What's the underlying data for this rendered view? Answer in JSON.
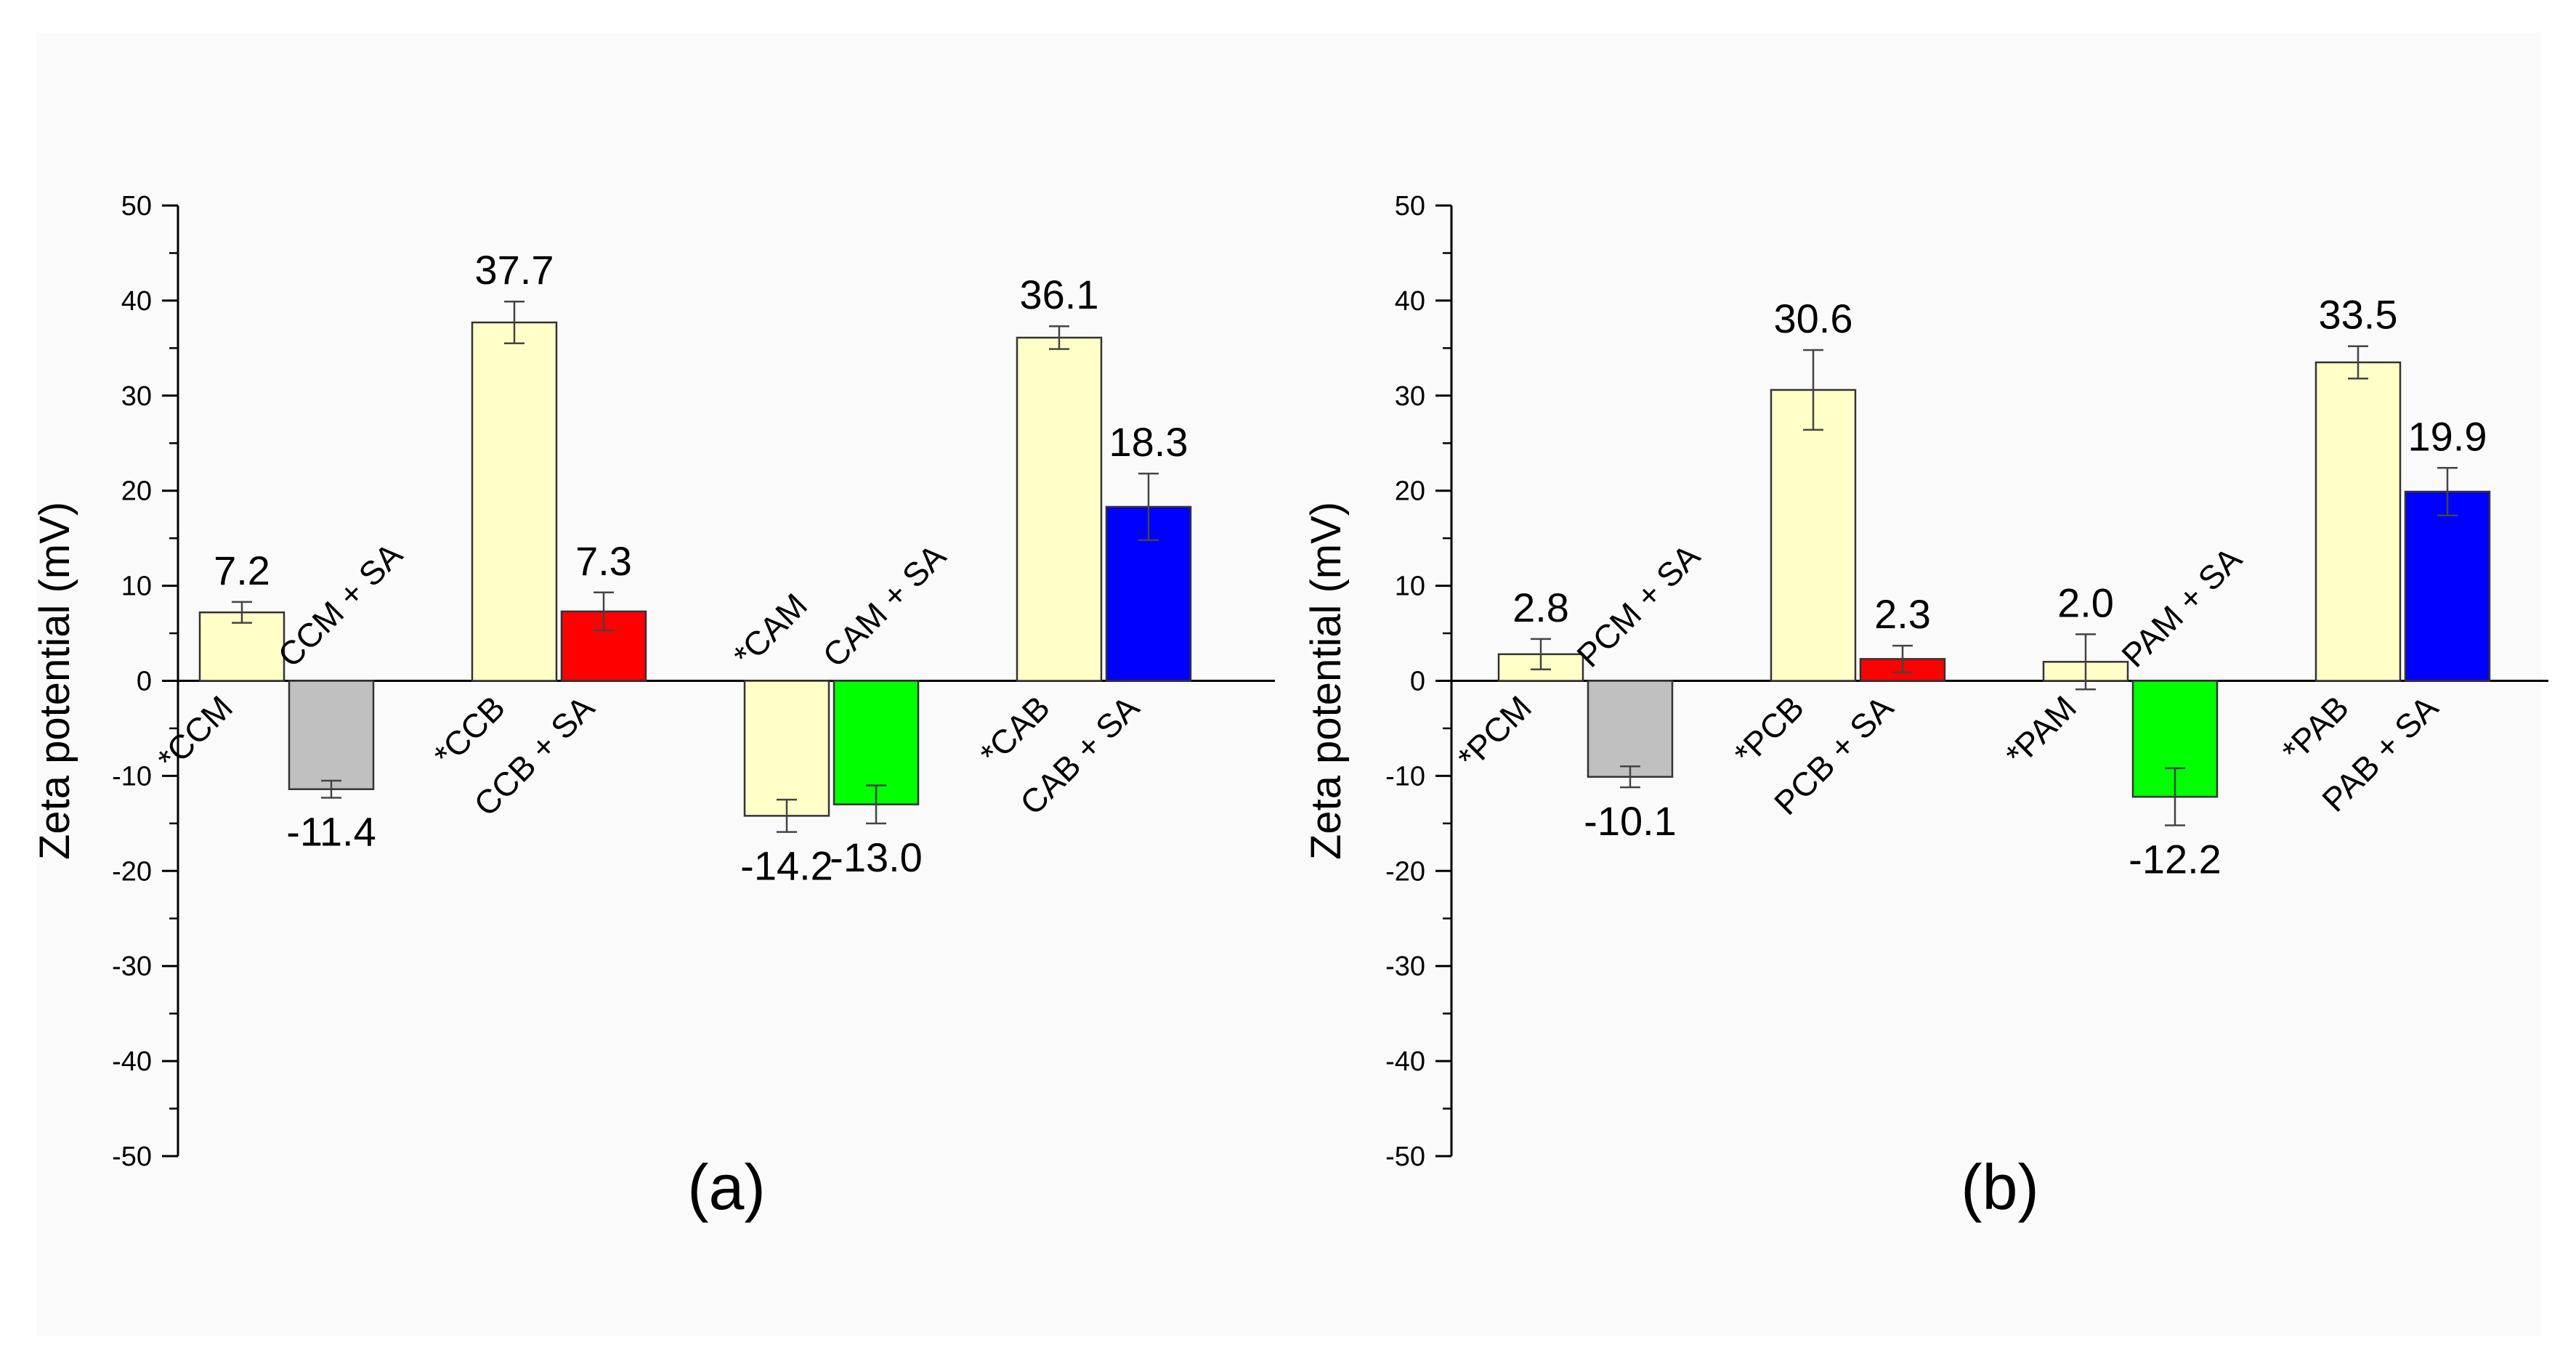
{
  "chart_data": [
    {
      "type": "bar",
      "panel_label": "(a)",
      "ylabel": "Zeta potential (mV)",
      "ylim": [
        -50,
        50
      ],
      "yticks": [
        50,
        40,
        30,
        20,
        10,
        0,
        -10,
        -20,
        -30,
        -40,
        -50
      ],
      "bars": [
        {
          "label": "*CCM",
          "value": 7.2,
          "value_label": "7.2",
          "error": 1.1,
          "color": "#ffffc8"
        },
        {
          "label": "CCM + SA",
          "value": -11.4,
          "value_label": "-11.4",
          "error": 0.9,
          "color": "#c0c0c0"
        },
        {
          "label": "*CCB",
          "value": 37.7,
          "value_label": "37.7",
          "error": 2.2,
          "color": "#ffffc8"
        },
        {
          "label": "CCB + SA",
          "value": 7.3,
          "value_label": "7.3",
          "error": 2.0,
          "color": "#ff0000"
        },
        {
          "label": "*CAM",
          "value": -14.2,
          "value_label": "-14.2",
          "error": 1.7,
          "color": "#ffffc8"
        },
        {
          "label": "CAM + SA",
          "value": -13.0,
          "value_label": "-13.0",
          "error": 2.0,
          "color": "#00ff00"
        },
        {
          "label": "*CAB",
          "value": 36.1,
          "value_label": "36.1",
          "error": 1.2,
          "color": "#ffffc8"
        },
        {
          "label": "CAB + SA",
          "value": 18.3,
          "value_label": "18.3",
          "error": 3.5,
          "color": "#0000ff"
        }
      ]
    },
    {
      "type": "bar",
      "panel_label": "(b)",
      "ylabel": "Zeta potential (mV)",
      "ylim": [
        -50,
        50
      ],
      "yticks": [
        50,
        40,
        30,
        20,
        10,
        0,
        -10,
        -20,
        -30,
        -40,
        -50
      ],
      "bars": [
        {
          "label": "*PCM",
          "value": 2.8,
          "value_label": "2.8",
          "error": 1.6,
          "color": "#ffffc8"
        },
        {
          "label": "PCM + SA",
          "value": -10.1,
          "value_label": "-10.1",
          "error": 1.1,
          "color": "#c0c0c0"
        },
        {
          "label": "*PCB",
          "value": 30.6,
          "value_label": "30.6",
          "error": 4.2,
          "color": "#ffffc8"
        },
        {
          "label": "PCB + SA",
          "value": 2.3,
          "value_label": "2.3",
          "error": 1.4,
          "color": "#ff0000"
        },
        {
          "label": "*PAM",
          "value": 2.0,
          "value_label": "2.0",
          "error": 2.9,
          "color": "#ffffc8"
        },
        {
          "label": "PAM + SA",
          "value": -12.2,
          "value_label": "-12.2",
          "error": 3.0,
          "color": "#00ff00"
        },
        {
          "label": "*PAB",
          "value": 33.5,
          "value_label": "33.5",
          "error": 1.7,
          "color": "#ffffc8"
        },
        {
          "label": "PAB + SA",
          "value": 19.9,
          "value_label": "19.9",
          "error": 2.5,
          "color": "#0000ff"
        }
      ]
    }
  ]
}
